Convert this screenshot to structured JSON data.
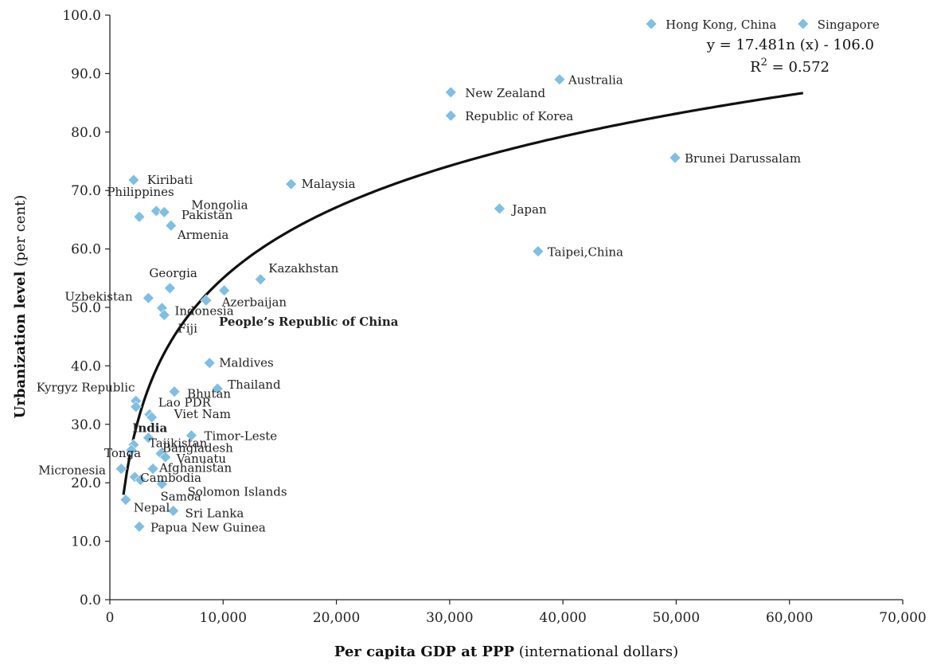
{
  "chart_data": {
    "type": "scatter",
    "xlabel_bold": "Per capita GDP at PPP",
    "xlabel_rest": " (international dollars)",
    "ylabel_bold": "Urbanization level",
    "ylabel_rest": " (per cent)",
    "xlim": [
      0,
      70000
    ],
    "ylim": [
      0,
      100
    ],
    "x_ticks": [
      0,
      10000,
      20000,
      30000,
      40000,
      50000,
      60000,
      70000
    ],
    "x_tick_labels": [
      "0",
      "10,000",
      "20,000",
      "30,000",
      "40,000",
      "50,000",
      "60,000",
      "70,000"
    ],
    "y_ticks": [
      0,
      10,
      20,
      30,
      40,
      50,
      60,
      70,
      80,
      90,
      100
    ],
    "y_tick_labels": [
      "0.0",
      "10.0",
      "20.0",
      "30.0",
      "40.0",
      "50.0",
      "60.0",
      "70.0",
      "80.0",
      "90.0",
      "100.0"
    ],
    "grid": false,
    "marker_color": "#7fbfe3",
    "trendline": {
      "type": "logarithmic",
      "a": 17.481,
      "b": -106.0,
      "x_range": [
        1200,
        61200
      ],
      "equation_label": "y = 17.481n (x) - 106.0",
      "r2_label_prefix": "R",
      "r2_label_sup": "2",
      "r2_label_suffix": " = 0.572"
    },
    "points": [
      {
        "label": "Hong Kong, China",
        "x": 47800,
        "y": 98.5,
        "bold": false
      },
      {
        "label": "Singapore",
        "x": 61200,
        "y": 98.5,
        "bold": false
      },
      {
        "label": "Australia",
        "x": 39700,
        "y": 89.0,
        "bold": false
      },
      {
        "label": "New Zealand",
        "x": 30100,
        "y": 86.8,
        "bold": false
      },
      {
        "label": "Republic of Korea",
        "x": 30100,
        "y": 82.8,
        "bold": false
      },
      {
        "label": "Brunei Darussalam",
        "x": 49900,
        "y": 75.6,
        "bold": false
      },
      {
        "label": "Kiribati",
        "x": 2100,
        "y": 71.8,
        "bold": false
      },
      {
        "label": "Malaysia",
        "x": 16000,
        "y": 71.1,
        "bold": false
      },
      {
        "label": "Philippines",
        "x": 4100,
        "y": 66.5,
        "bold": false
      },
      {
        "label": "Mongolia",
        "x": 4800,
        "y": 66.3,
        "bold": false
      },
      {
        "label": "Japan",
        "x": 34400,
        "y": 66.9,
        "bold": false
      },
      {
        "label": "",
        "x": 2600,
        "y": 65.5,
        "bold": false
      },
      {
        "label": "Pakistan",
        "x": 5400,
        "y": 64.0,
        "bold": false
      },
      {
        "label": "Armenia",
        "x": 5400,
        "y": 64.0,
        "bold": false
      },
      {
        "label": "Taipei,China",
        "x": 37800,
        "y": 59.6,
        "bold": false
      },
      {
        "label": "Kazakhstan",
        "x": 13300,
        "y": 54.8,
        "bold": false
      },
      {
        "label": "Georgia",
        "x": 5300,
        "y": 53.3,
        "bold": false
      },
      {
        "label": "Azerbaijan",
        "x": 10100,
        "y": 52.9,
        "bold": false
      },
      {
        "label": "Uzbekistan",
        "x": 3400,
        "y": 51.6,
        "bold": false
      },
      {
        "label": "People’s Republic of China",
        "x": 8500,
        "y": 51.2,
        "bold": true
      },
      {
        "label": "Indonesia",
        "x": 4600,
        "y": 49.9,
        "bold": false
      },
      {
        "label": "Fiji",
        "x": 4800,
        "y": 48.7,
        "bold": false
      },
      {
        "label": "Maldives",
        "x": 8800,
        "y": 40.5,
        "bold": false
      },
      {
        "label": "Thailand",
        "x": 9500,
        "y": 36.1,
        "bold": false
      },
      {
        "label": "Bhutan",
        "x": 5700,
        "y": 35.6,
        "bold": false
      },
      {
        "label": "Kyrgyz Republic",
        "x": 2300,
        "y": 34.0,
        "bold": false
      },
      {
        "label": "",
        "x": 2300,
        "y": 33.0,
        "bold": false
      },
      {
        "label": "Lao PDR",
        "x": 3500,
        "y": 31.7,
        "bold": false
      },
      {
        "label": "Viet Nam",
        "x": 3700,
        "y": 31.2,
        "bold": false
      },
      {
        "label": "Timor-Leste",
        "x": 7200,
        "y": 28.1,
        "bold": false
      },
      {
        "label": "India",
        "x": 3400,
        "y": 27.7,
        "bold": true
      },
      {
        "label": "Tajikistan",
        "x": 2100,
        "y": 26.5,
        "bold": false
      },
      {
        "label": "Tonga",
        "x": 1900,
        "y": 25.6,
        "bold": false
      },
      {
        "label": "Bangladesh",
        "x": 4500,
        "y": 25.0,
        "bold": false
      },
      {
        "label": "Vanuatu",
        "x": 4900,
        "y": 24.4,
        "bold": false
      },
      {
        "label": "Afghanistan",
        "x": 3800,
        "y": 22.4,
        "bold": false
      },
      {
        "label": "Micronesia",
        "x": 1000,
        "y": 22.4,
        "bold": false
      },
      {
        "label": "Cambodia",
        "x": 2200,
        "y": 21.0,
        "bold": false
      },
      {
        "label": "",
        "x": 2700,
        "y": 20.5,
        "bold": false
      },
      {
        "label": "Samoa",
        "x": 4600,
        "y": 19.8,
        "bold": false
      },
      {
        "label": "Solomon Islands",
        "x": 4600,
        "y": 19.8,
        "bold": false
      },
      {
        "label": "Nepal",
        "x": 1400,
        "y": 17.1,
        "bold": false
      },
      {
        "label": "Sri Lanka",
        "x": 5600,
        "y": 15.2,
        "bold": false
      },
      {
        "label": "Papua New Guinea",
        "x": 2600,
        "y": 12.5,
        "bold": false
      }
    ]
  }
}
